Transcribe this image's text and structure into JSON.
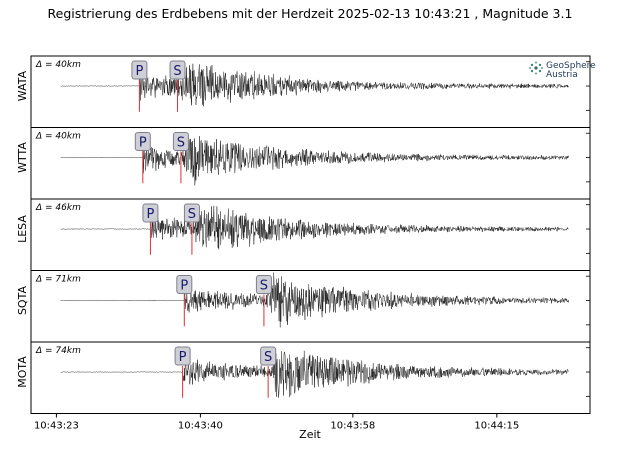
{
  "chart_data": {
    "type": "line",
    "title": "Registrierung des Erdbebens mit der Herdzeit 2025-02-13 10:43:21 , Magnitude 3.1",
    "xlabel": "Zeit",
    "x_ticks": [
      "10:43:23",
      "10:43:40",
      "10:43:58",
      "10:44:15"
    ],
    "x_tick_seconds": [
      2,
      19,
      37,
      54
    ],
    "x_range_seconds": [
      -1,
      65
    ],
    "logo": {
      "line1": "GeoSphere",
      "line2": "Austria"
    },
    "traces": [
      {
        "station": "WATA",
        "distance": "Δ = 40km",
        "p_label": "P",
        "s_label": "S",
        "p_time": 11.8,
        "s_time": 16.3,
        "start": 2.5,
        "end": 62.5
      },
      {
        "station": "WTTA",
        "distance": "Δ = 40km",
        "p_label": "P",
        "s_label": "S",
        "p_time": 12.2,
        "s_time": 16.7,
        "start": 2.5,
        "end": 62.5
      },
      {
        "station": "LESA",
        "distance": "Δ = 46km",
        "p_label": "P",
        "s_label": "S",
        "p_time": 13.1,
        "s_time": 18.0,
        "start": 2.5,
        "end": 62.5
      },
      {
        "station": "SQTA",
        "distance": "Δ = 71km",
        "p_label": "P",
        "s_label": "S",
        "p_time": 17.1,
        "s_time": 26.5,
        "start": 2.5,
        "end": 62.5
      },
      {
        "station": "MOTA",
        "distance": "Δ = 74km",
        "p_label": "P",
        "s_label": "S",
        "p_time": 16.9,
        "s_time": 27.0,
        "start": 2.5,
        "end": 62.5
      }
    ]
  }
}
